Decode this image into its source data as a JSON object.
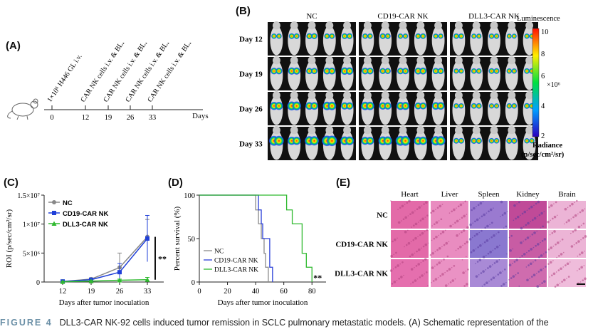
{
  "panels": {
    "a": {
      "letter": "(A)",
      "events": [
        {
          "day": "0",
          "label": "1×10⁶ H446 GL i.v."
        },
        {
          "day": "12",
          "label": "CAR NK cells i.v. & BLI"
        },
        {
          "day": "19",
          "label": "CAR NK cells i.v. & BLI"
        },
        {
          "day": "26",
          "label": "CAR NK cells i.v. & BLI"
        },
        {
          "day": "33",
          "label": "CAR NK cells i.v. & BLI"
        }
      ],
      "axis_unit": "Days"
    },
    "b": {
      "letter": "(B)",
      "groups": [
        "NC",
        "CD19-CAR NK",
        "DLL3-CAR NK"
      ],
      "rows": [
        "Day 12",
        "Day 19",
        "Day 26",
        "Day 33"
      ],
      "scale": {
        "title": "Luminescence",
        "ticks": [
          "10",
          "8",
          "6",
          "4",
          "2"
        ],
        "multiplier": "×10⁶",
        "unit_line1": "Radiance",
        "unit_line2": "(p/sec/cm²/sr)"
      }
    },
    "e": {
      "letter": "(E)",
      "tissues": [
        "Heart",
        "Liver",
        "Spleen",
        "Kidney",
        "Brain"
      ],
      "groups": [
        "NC",
        "CD19-CAR NK",
        "DLL3-CAR NK"
      ]
    }
  },
  "chart_data": [
    {
      "panel": "(C)",
      "type": "line",
      "xlabel": "Days after tumor inoculation",
      "ylabel": "ROI (p/sec/cm²/sr)",
      "x": [
        12,
        19,
        26,
        33
      ],
      "x_ticks": [
        "12",
        "19",
        "26",
        "33"
      ],
      "y_ticks": [
        "0",
        "5×10⁶",
        "1×10⁷",
        "1.5×10⁷"
      ],
      "ylim": [
        0,
        15000000
      ],
      "legend_position": "top-left",
      "significance": "**",
      "series": [
        {
          "name": "NC",
          "color": "#888888",
          "marker": "circle",
          "values": [
            100000,
            500000,
            2500000,
            7800000
          ],
          "err": [
            100000,
            200000,
            2500000,
            3000000
          ]
        },
        {
          "name": "CD19-CAR NK",
          "color": "#1f3fd8",
          "marker": "square",
          "values": [
            100000,
            400000,
            1700000,
            7500000
          ],
          "err": [
            100000,
            200000,
            1500000,
            4000000
          ]
        },
        {
          "name": "DLL3-CAR NK",
          "color": "#2fb92f",
          "marker": "triangle",
          "values": [
            50000,
            150000,
            300000,
            400000
          ],
          "err": [
            50000,
            100000,
            200000,
            400000
          ]
        }
      ]
    },
    {
      "panel": "(D)",
      "type": "line",
      "xlabel": "Days after tumor inoculation",
      "ylabel": "Percent survival (%)",
      "x_ticks": [
        "0",
        "20",
        "40",
        "60",
        "80"
      ],
      "y_ticks": [
        "0",
        "50",
        "100"
      ],
      "xlim": [
        0,
        90
      ],
      "ylim": [
        0,
        100
      ],
      "legend_position": "bottom-left",
      "significance": "**",
      "series": [
        {
          "name": "NC",
          "color": "#8a8a8a",
          "steps": [
            [
              0,
              100
            ],
            [
              40,
              100
            ],
            [
              40,
              83
            ],
            [
              42,
              83
            ],
            [
              42,
              67
            ],
            [
              44,
              67
            ],
            [
              44,
              50
            ],
            [
              46,
              50
            ],
            [
              46,
              33
            ],
            [
              47,
              33
            ],
            [
              47,
              17
            ],
            [
              49,
              17
            ],
            [
              49,
              0
            ]
          ]
        },
        {
          "name": "CD19-CAR NK",
          "color": "#2a3fd8",
          "steps": [
            [
              0,
              100
            ],
            [
              42,
              100
            ],
            [
              42,
              83
            ],
            [
              44,
              83
            ],
            [
              44,
              67
            ],
            [
              45,
              67
            ],
            [
              45,
              50
            ],
            [
              50,
              50
            ],
            [
              50,
              17
            ],
            [
              52,
              17
            ],
            [
              52,
              0
            ]
          ]
        },
        {
          "name": "DLL3-CAR NK",
          "color": "#2fb92f",
          "steps": [
            [
              0,
              100
            ],
            [
              62,
              100
            ],
            [
              62,
              83
            ],
            [
              66,
              83
            ],
            [
              66,
              67
            ],
            [
              73,
              67
            ],
            [
              73,
              33
            ],
            [
              76,
              33
            ],
            [
              76,
              17
            ],
            [
              80,
              17
            ],
            [
              80,
              0
            ]
          ]
        }
      ]
    }
  ],
  "caption": {
    "label": "FIGURE 4",
    "text": "DLL3-CAR NK-92 cells induced tumor remission in SCLC pulmonary metastatic models. (A) Schematic representation of the"
  }
}
